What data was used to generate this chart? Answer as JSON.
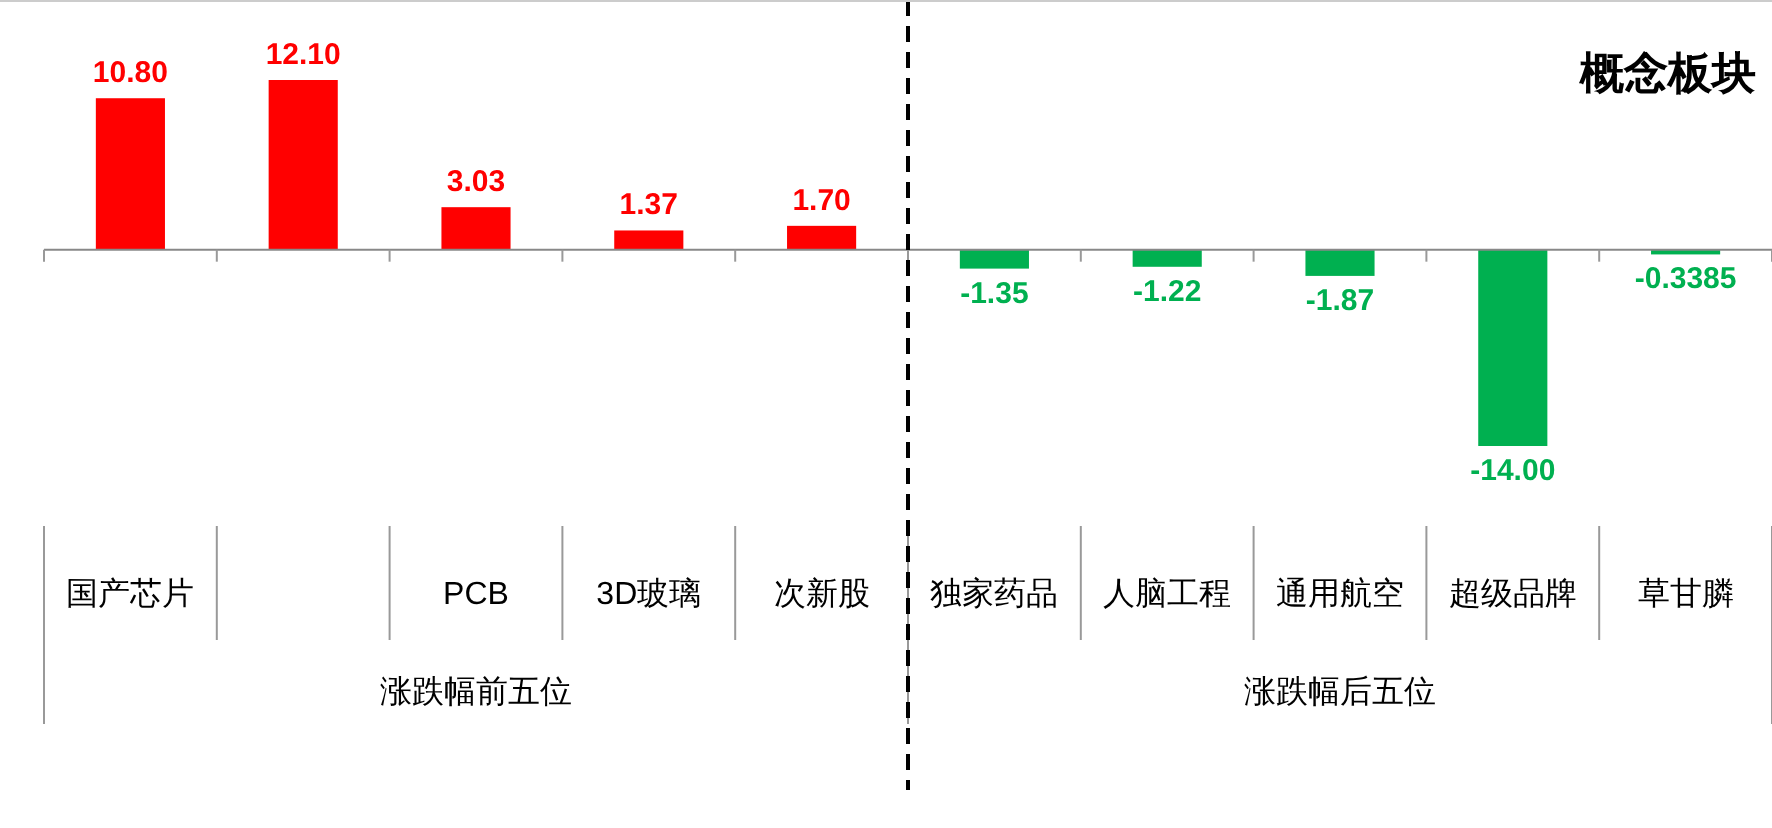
{
  "chart_data": {
    "type": "bar",
    "title": "概念板块",
    "categories": [
      "国产芯片",
      null,
      "PCB",
      "3D玻璃",
      "次新股",
      "独家药品",
      "人脑工程",
      "通用航空",
      "超级品牌",
      "草甘膦"
    ],
    "values": [
      10.8,
      12.1,
      3.03,
      1.37,
      1.7,
      -1.35,
      -1.22,
      -1.87,
      -14.0,
      -0.3385
    ],
    "value_labels": [
      "10.80",
      "12.10",
      "3.03",
      "1.37",
      "1.70",
      "-1.35",
      "-1.22",
      "-1.87",
      "-14.00",
      "-0.3385"
    ],
    "colors": [
      "#ff0000",
      "#ff0000",
      "#ff0000",
      "#ff0000",
      "#ff0000",
      "#00b050",
      "#00b050",
      "#00b050",
      "#00b050",
      "#00b050"
    ],
    "annotations": [
      "涨跌幅前五位",
      "涨跌幅后五位"
    ]
  }
}
